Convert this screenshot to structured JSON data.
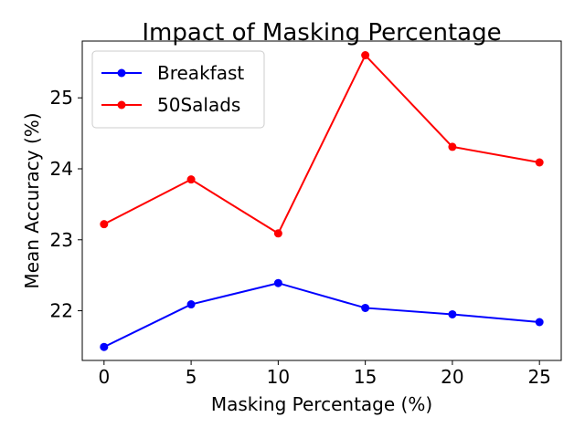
{
  "chart_data": {
    "type": "line",
    "title": "Impact of Masking Percentage",
    "xlabel": "Masking Percentage (%)",
    "ylabel": "Mean Accuracy (%)",
    "x": [
      0,
      5,
      10,
      15,
      20,
      25
    ],
    "xticks": [
      0,
      5,
      10,
      15,
      20,
      25
    ],
    "yticks": [
      22,
      23,
      24,
      25
    ],
    "xlim": [
      -1.25,
      26.25
    ],
    "ylim": [
      21.3,
      25.8
    ],
    "grid": false,
    "legend_position": "top-left",
    "series": [
      {
        "name": "Breakfast",
        "color": "#0000ff",
        "values": [
          21.49,
          22.09,
          22.39,
          22.04,
          21.95,
          21.84
        ]
      },
      {
        "name": "50Salads",
        "color": "#ff0000",
        "values": [
          23.22,
          23.85,
          23.09,
          25.6,
          24.31,
          24.09
        ]
      }
    ]
  }
}
